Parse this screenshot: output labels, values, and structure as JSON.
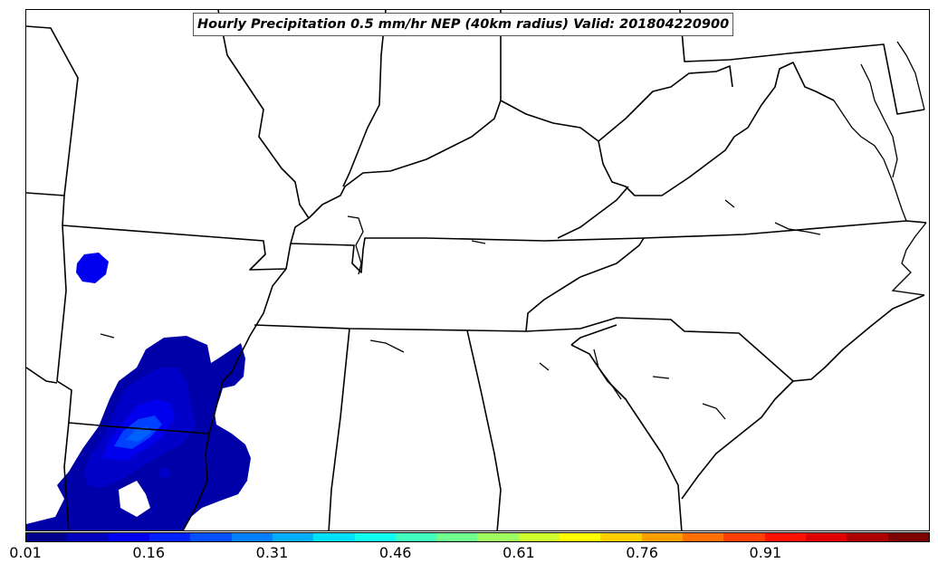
{
  "title": "Hourly Precipitation 0.5 mm/hr NEP (40km radius) Valid: 201804220900",
  "colorbar": {
    "colors": [
      "#00008f",
      "#0000bf",
      "#0000ef",
      "#0020ff",
      "#0050ff",
      "#0080ff",
      "#00b0ff",
      "#00e0ff",
      "#10ffef",
      "#40ffbf",
      "#70ff8f",
      "#a0ff60",
      "#d0ff30",
      "#ffff00",
      "#ffcf00",
      "#ffa000",
      "#ff7000",
      "#ff4000",
      "#ff1000",
      "#df0000",
      "#af0000",
      "#7f0000"
    ],
    "tick_labels": [
      "0.01",
      "0.16",
      "0.31",
      "0.46",
      "0.61",
      "0.76",
      "0.91"
    ]
  },
  "map_layers": {
    "basemap": "state-borders-and-coastline",
    "precip_colors": [
      "#0000a8",
      "#0000c8",
      "#0000ee",
      "#0040ff",
      "#0060ff"
    ]
  }
}
